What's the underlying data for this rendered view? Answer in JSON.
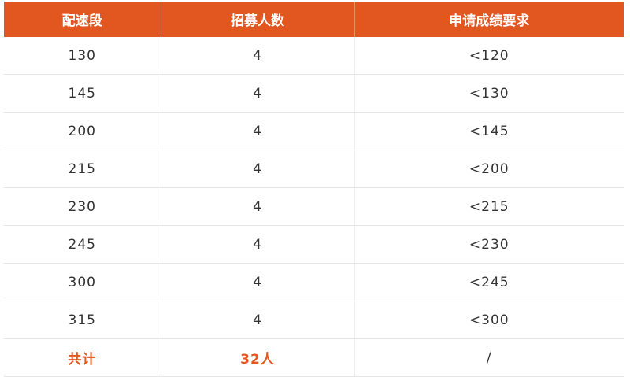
{
  "headers": [
    "配速段",
    "招募人数",
    "申请成绩要求"
  ],
  "rows": [
    [
      "130",
      "4",
      "<120"
    ],
    [
      "145",
      "4",
      "<130"
    ],
    [
      "200",
      "4",
      "<145"
    ],
    [
      "215",
      "4",
      "<200"
    ],
    [
      "230",
      "4",
      "<215"
    ],
    [
      "245",
      "4",
      "<230"
    ],
    [
      "300",
      "4",
      "<245"
    ],
    [
      "315",
      "4",
      "<300"
    ]
  ],
  "total": [
    "共计",
    "32人",
    "/"
  ],
  "colors": {
    "accent": "#e2561f",
    "text": "#333333"
  }
}
